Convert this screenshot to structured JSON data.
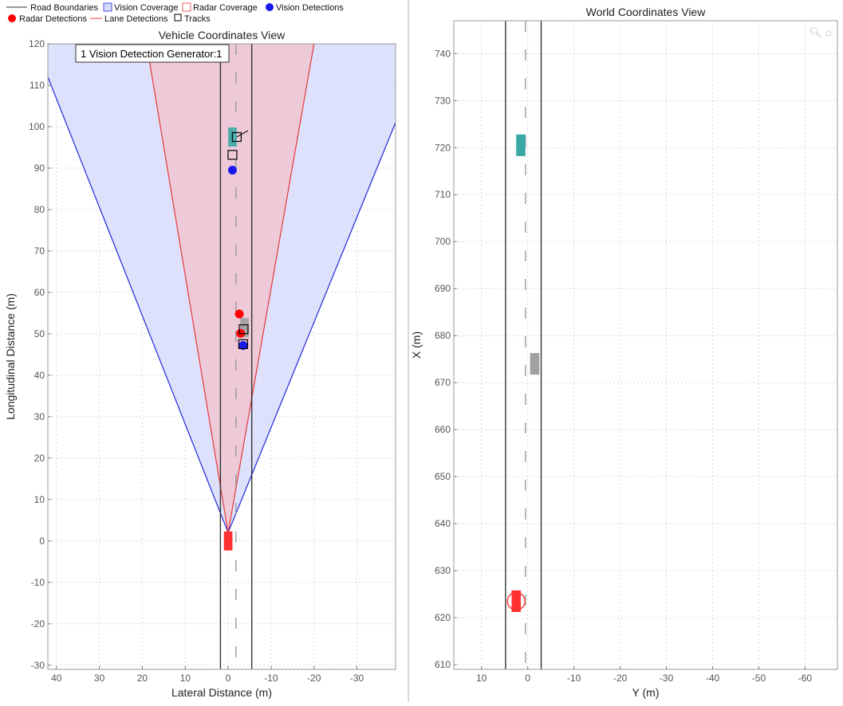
{
  "legend": {
    "row1": [
      "Road Boundaries",
      "Vision Coverage",
      "Radar Coverage",
      "Vision Detections"
    ],
    "row2": [
      "Radar Detections",
      "Lane Detections",
      "Tracks"
    ]
  },
  "tooltip": "1 Vision Detection Generator:1",
  "colors": {
    "road": "#333333",
    "vision_fill": "#d8dcfa",
    "vision_edge": "#1f2ad8",
    "radar_fill": "#f0c6d4",
    "radar_edge": "#e53a3a",
    "vision_det": "#1a1aee",
    "radar_det": "#ff0000",
    "ego": "#ff3030",
    "teal": "#3aa9a6",
    "gray_car": "#a0a0a0",
    "track": "#000000",
    "grid": "#cfcfcf"
  },
  "toolbar": {
    "zoom_icon": "zoom-in-icon",
    "home_icon": "home-icon"
  },
  "chart_data": [
    {
      "type": "scatter",
      "title": "Vehicle Coordinates View",
      "xlabel": "Lateral Distance (m)",
      "ylabel": "Longitudinal Distance (m)",
      "xlim": [
        42,
        -39
      ],
      "ylim": [
        -31,
        120
      ],
      "x_reversed": true,
      "grid": true,
      "xticks": [
        40,
        30,
        20,
        10,
        0,
        -10,
        -20,
        -30
      ],
      "yticks": [
        -30,
        -20,
        -10,
        0,
        10,
        20,
        30,
        40,
        50,
        60,
        70,
        80,
        90,
        100,
        110,
        120
      ],
      "road_boundaries_y": [
        1.8,
        -5.5
      ],
      "lane_marking_y": -1.8,
      "vision_coverage": {
        "apex": [
          0,
          2
        ],
        "left_edge_at_top": [
          42,
          112
        ],
        "right_edge_at_top": [
          -39,
          101
        ]
      },
      "radar_coverage": {
        "apex": [
          0,
          2
        ],
        "left_edge_at_top": [
          19,
          120
        ],
        "right_edge_at_top": [
          -20,
          120
        ]
      },
      "ego_vehicle": {
        "y": 0,
        "x": 0
      },
      "objects": [
        {
          "name": "teal-car",
          "y": -1,
          "x": 97.5
        },
        {
          "name": "gray-car",
          "y": -3.8,
          "x": 51.5
        }
      ],
      "radar_detections": [
        {
          "y": -2.6,
          "x": 54.8
        },
        {
          "y": -2.9,
          "x": 50.1
        }
      ],
      "vision_detections": [
        {
          "y": -1,
          "x": 89.5
        },
        {
          "y": -3.5,
          "x": 47.2
        }
      ],
      "tracks": [
        {
          "y": -2,
          "x": 97.5
        },
        {
          "y": -1,
          "x": 93.2
        },
        {
          "y": -3.6,
          "x": 51.1
        },
        {
          "y": -3.5,
          "x": 47.5
        }
      ]
    },
    {
      "type": "scatter",
      "title": "World Coordinates View",
      "xlabel": "Y (m)",
      "ylabel": "X (m)",
      "xlim": [
        16,
        -67
      ],
      "ylim": [
        609,
        747
      ],
      "x_reversed": true,
      "grid": true,
      "xticks": [
        10,
        0,
        -10,
        -20,
        -30,
        -40,
        -50,
        -60
      ],
      "yticks": [
        610,
        620,
        630,
        640,
        650,
        660,
        670,
        680,
        690,
        700,
        710,
        720,
        730,
        740
      ],
      "road_boundaries_y": [
        4.8,
        -2.9
      ],
      "lane_marking_y": 0.5,
      "ego_vehicle": {
        "y": 2.5,
        "x": 623.5
      },
      "objects": [
        {
          "name": "teal-car",
          "y": 1.5,
          "x": 720.5
        },
        {
          "name": "gray-car",
          "y": -1.5,
          "x": 674
        }
      ]
    }
  ]
}
